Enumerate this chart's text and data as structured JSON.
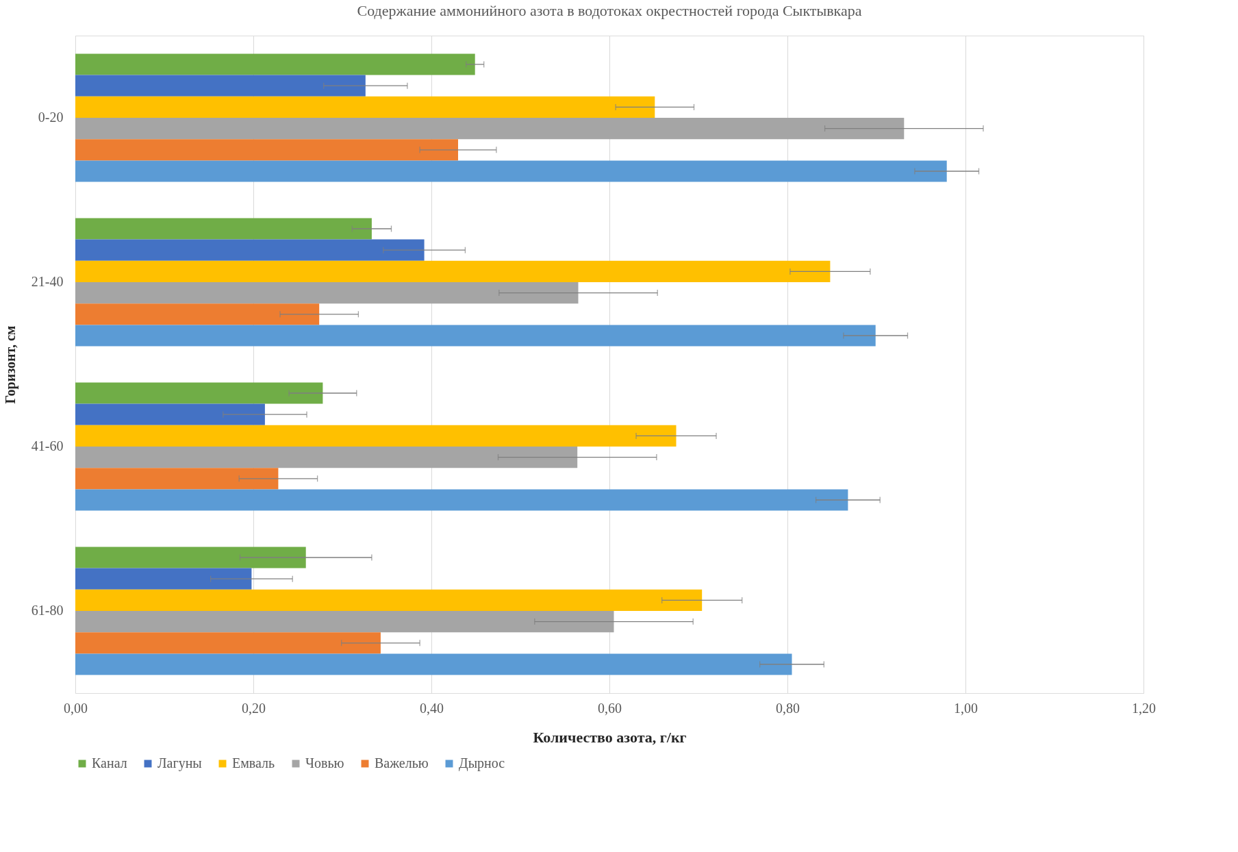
{
  "chart_data": {
    "type": "bar",
    "orientation": "horizontal",
    "title": "Содержание аммонийного азота в водотоках окрестностей города Сыктывкара",
    "xlabel": "Количество азота, г/кг",
    "ylabel": "Горизонт, см",
    "categories": [
      "0-20",
      "21-40",
      "41-60",
      "61-80"
    ],
    "series": [
      {
        "name": "Канал",
        "color": "#70ad47",
        "values": [
          0.449,
          0.333,
          0.278,
          0.259
        ],
        "errors": [
          0.01,
          0.022,
          0.038,
          0.074
        ]
      },
      {
        "name": "Лагуны",
        "color": "#4472c4",
        "values": [
          0.326,
          0.392,
          0.213,
          0.198
        ],
        "errors": [
          0.047,
          0.046,
          0.047,
          0.046
        ]
      },
      {
        "name": "Емваль",
        "color": "#ffc000",
        "values": [
          0.651,
          0.848,
          0.675,
          0.704
        ],
        "errors": [
          0.044,
          0.045,
          0.045,
          0.045
        ]
      },
      {
        "name": "Човью",
        "color": "#a5a5a5",
        "values": [
          0.931,
          0.565,
          0.564,
          0.605
        ],
        "errors": [
          0.089,
          0.089,
          0.089,
          0.089
        ]
      },
      {
        "name": "Важелью",
        "color": "#ed7d31",
        "values": [
          0.43,
          0.274,
          0.228,
          0.343
        ],
        "errors": [
          0.043,
          0.044,
          0.044,
          0.044
        ]
      },
      {
        "name": "Дырнос",
        "color": "#5b9bd5",
        "values": [
          0.979,
          0.899,
          0.868,
          0.805
        ],
        "errors": [
          0.036,
          0.036,
          0.036,
          0.036
        ]
      }
    ],
    "xlim": [
      0,
      1.2
    ],
    "xticks": [
      {
        "value": 0,
        "label": "0,00"
      },
      {
        "value": 0.2,
        "label": "0,20"
      },
      {
        "value": 0.4,
        "label": "0,40"
      },
      {
        "value": 0.6,
        "label": "0,60"
      },
      {
        "value": 0.8,
        "label": "0,80"
      },
      {
        "value": 1,
        "label": "1,00"
      },
      {
        "value": 1.2,
        "label": "1,20"
      }
    ],
    "grid": "x",
    "legend": "bottom"
  }
}
